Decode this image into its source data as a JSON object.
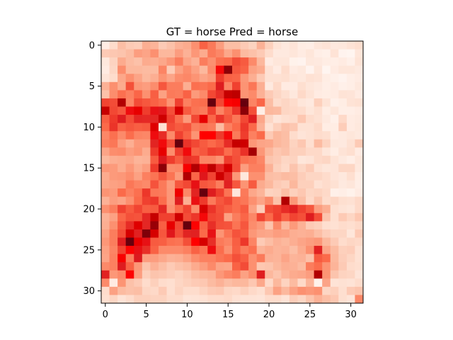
{
  "chart_data": {
    "type": "heatmap",
    "title": "GT = horse Pred = horse",
    "xlabel": "",
    "ylabel": "",
    "colormap": "Reds",
    "rows": 32,
    "cols": 32,
    "xlim": [
      -0.5,
      31.5
    ],
    "ylim": [
      31.5,
      -0.5
    ],
    "x_ticks": [
      0,
      5,
      10,
      15,
      20,
      25,
      30
    ],
    "y_ticks": [
      0,
      5,
      10,
      15,
      20,
      25,
      30
    ],
    "x_tick_labels": [
      "0",
      "5",
      "10",
      "15",
      "20",
      "25",
      "30"
    ],
    "y_tick_labels": [
      "0",
      "5",
      "10",
      "15",
      "20",
      "25",
      "30"
    ],
    "grid": false,
    "values": [
      [
        0.05,
        0.14,
        0.24,
        0.2,
        0.19,
        0.29,
        0.27,
        0.2,
        0.23,
        0.28,
        0.3,
        0.38,
        0.52,
        0.45,
        0.34,
        0.24,
        0.24,
        0.2,
        0.17,
        0.28,
        0.18,
        0.11,
        0.07,
        0.1,
        0.05,
        0.04,
        0.09,
        0.11,
        0.07,
        0.08,
        0.11,
        0.13
      ],
      [
        0.2,
        0.21,
        0.22,
        0.25,
        0.34,
        0.32,
        0.38,
        0.26,
        0.26,
        0.34,
        0.28,
        0.36,
        0.3,
        0.45,
        0.41,
        0.31,
        0.38,
        0.25,
        0.23,
        0.2,
        0.14,
        0.07,
        0.07,
        0.09,
        0.06,
        0.09,
        0.04,
        0.03,
        0.11,
        0.01,
        0.0,
        0.09
      ],
      [
        0.08,
        0.17,
        0.3,
        0.25,
        0.23,
        0.3,
        0.29,
        0.31,
        0.36,
        0.44,
        0.32,
        0.28,
        0.44,
        0.38,
        0.48,
        0.5,
        0.58,
        0.54,
        0.4,
        0.26,
        0.06,
        0.09,
        0.09,
        0.02,
        0.01,
        0.08,
        0.07,
        0.05,
        0.04,
        0.06,
        0.03,
        0.11
      ],
      [
        0.06,
        0.16,
        0.39,
        0.26,
        0.26,
        0.25,
        0.25,
        0.42,
        0.2,
        0.33,
        0.39,
        0.33,
        0.26,
        0.4,
        0.82,
        0.97,
        0.55,
        0.52,
        0.33,
        0.3,
        0.12,
        0.06,
        0.14,
        0.06,
        0.08,
        0.01,
        0.09,
        0.0,
        0.06,
        0.09,
        0.09,
        0.07
      ],
      [
        0.1,
        0.14,
        0.31,
        0.38,
        0.32,
        0.26,
        0.29,
        0.37,
        0.32,
        0.39,
        0.41,
        0.37,
        0.32,
        0.35,
        0.62,
        0.52,
        0.51,
        0.36,
        0.29,
        0.2,
        0.12,
        0.12,
        0.13,
        0.09,
        0.08,
        0.12,
        0.11,
        0.05,
        0.03,
        0.01,
        0.04,
        0.06
      ],
      [
        0.28,
        0.38,
        0.3,
        0.57,
        0.36,
        0.34,
        0.39,
        0.55,
        0.44,
        0.44,
        0.29,
        0.48,
        0.47,
        0.5,
        0.74,
        0.42,
        0.61,
        0.37,
        0.46,
        0.29,
        0.07,
        0.15,
        0.06,
        0.06,
        0.13,
        0.09,
        0.07,
        0.04,
        0.06,
        0.03,
        0.04,
        0.08
      ],
      [
        0.23,
        0.39,
        0.48,
        0.43,
        0.51,
        0.38,
        0.53,
        0.33,
        0.45,
        0.44,
        0.52,
        0.35,
        0.4,
        0.59,
        0.67,
        0.92,
        0.93,
        0.37,
        0.4,
        0.28,
        0.2,
        0.16,
        0.13,
        0.08,
        0.15,
        0.11,
        0.06,
        0.05,
        0.06,
        0.11,
        0.1,
        0.06
      ],
      [
        0.6,
        0.58,
        0.94,
        0.42,
        0.58,
        0.55,
        0.52,
        0.49,
        0.37,
        0.61,
        0.43,
        0.48,
        0.49,
        1.0,
        0.59,
        0.84,
        0.86,
        1.0,
        0.42,
        0.51,
        0.24,
        0.14,
        0.16,
        0.14,
        0.09,
        0.07,
        0.18,
        0.11,
        0.03,
        0.05,
        0.11,
        0.12
      ],
      [
        0.92,
        0.59,
        0.55,
        0.8,
        0.88,
        0.62,
        0.78,
        0.76,
        0.57,
        0.9,
        0.54,
        0.47,
        0.45,
        0.61,
        0.42,
        0.52,
        0.65,
        0.97,
        0.57,
        0.04,
        0.26,
        0.25,
        0.16,
        0.15,
        0.14,
        0.09,
        0.13,
        0.05,
        0.09,
        0.04,
        0.04,
        0.06
      ],
      [
        0.53,
        0.63,
        0.74,
        0.58,
        0.7,
        0.69,
        0.7,
        0.91,
        0.61,
        0.49,
        0.35,
        0.59,
        0.88,
        0.51,
        0.65,
        0.55,
        0.46,
        0.59,
        0.73,
        0.31,
        0.16,
        0.1,
        0.13,
        0.14,
        0.21,
        0.14,
        0.12,
        0.07,
        0.03,
        0.15,
        0.06,
        0.07
      ],
      [
        0.5,
        0.65,
        0.52,
        0.55,
        0.53,
        0.54,
        0.89,
        0.12,
        0.58,
        0.54,
        0.56,
        0.44,
        0.47,
        0.45,
        0.25,
        0.43,
        0.5,
        0.64,
        0.5,
        0.28,
        0.12,
        0.18,
        0.23,
        0.21,
        0.12,
        0.12,
        0.15,
        0.05,
        0.05,
        0.19,
        0.06,
        0.08
      ],
      [
        0.41,
        0.48,
        0.4,
        0.49,
        0.42,
        0.41,
        0.8,
        0.68,
        0.4,
        0.61,
        0.52,
        0.37,
        0.85,
        0.85,
        0.63,
        0.82,
        0.45,
        0.62,
        0.43,
        0.5,
        0.2,
        0.26,
        0.24,
        0.14,
        0.1,
        0.12,
        0.14,
        0.13,
        0.06,
        0.07,
        0.09,
        0.07
      ],
      [
        0.43,
        0.46,
        0.34,
        0.29,
        0.36,
        0.36,
        0.71,
        0.81,
        0.58,
        1.0,
        0.65,
        0.59,
        0.54,
        0.5,
        0.54,
        0.68,
        0.92,
        0.91,
        0.36,
        0.32,
        0.31,
        0.26,
        0.24,
        0.17,
        0.21,
        0.13,
        0.25,
        0.17,
        0.08,
        0.07,
        0.12,
        0.2
      ],
      [
        0.32,
        0.39,
        0.4,
        0.34,
        0.37,
        0.3,
        0.63,
        0.88,
        0.39,
        0.62,
        0.81,
        0.52,
        0.55,
        0.62,
        0.6,
        0.49,
        0.56,
        0.66,
        0.95,
        0.36,
        0.26,
        0.21,
        0.23,
        0.18,
        0.18,
        0.15,
        0.15,
        0.09,
        0.05,
        0.11,
        0.13,
        0.06
      ],
      [
        0.26,
        0.29,
        0.3,
        0.31,
        0.27,
        0.28,
        0.54,
        0.75,
        0.62,
        0.54,
        0.66,
        0.63,
        0.42,
        0.42,
        0.37,
        0.62,
        0.57,
        0.48,
        0.46,
        0.41,
        0.22,
        0.2,
        0.16,
        0.17,
        0.09,
        0.11,
        0.15,
        0.16,
        0.11,
        0.07,
        0.04,
        0.09
      ],
      [
        0.36,
        0.35,
        0.3,
        0.36,
        0.3,
        0.34,
        0.63,
        0.97,
        0.4,
        0.41,
        0.86,
        0.94,
        0.8,
        0.93,
        0.69,
        0.9,
        0.58,
        0.34,
        0.43,
        0.43,
        0.28,
        0.18,
        0.15,
        0.22,
        0.16,
        0.2,
        0.12,
        0.09,
        0.1,
        0.16,
        0.16,
        0.08
      ],
      [
        0.3,
        0.35,
        0.36,
        0.39,
        0.33,
        0.43,
        0.47,
        0.55,
        0.47,
        0.35,
        0.94,
        0.51,
        0.76,
        0.6,
        0.91,
        0.7,
        0.36,
        0.08,
        0.38,
        0.38,
        0.24,
        0.23,
        0.25,
        0.24,
        0.19,
        0.16,
        0.16,
        0.14,
        0.1,
        0.08,
        0.13,
        0.05
      ],
      [
        0.31,
        0.33,
        0.34,
        0.46,
        0.42,
        0.4,
        0.56,
        0.45,
        0.35,
        0.55,
        0.59,
        0.78,
        0.55,
        0.53,
        0.44,
        0.72,
        0.55,
        0.37,
        0.54,
        0.3,
        0.26,
        0.2,
        0.18,
        0.26,
        0.18,
        0.18,
        0.12,
        0.14,
        0.12,
        0.07,
        0.09,
        0.04
      ],
      [
        0.37,
        0.35,
        0.5,
        0.43,
        0.48,
        0.64,
        0.46,
        0.45,
        0.36,
        0.87,
        0.41,
        0.71,
        1.0,
        0.74,
        0.62,
        0.47,
        0.09,
        0.45,
        0.31,
        0.27,
        0.17,
        0.18,
        0.24,
        0.18,
        0.21,
        0.16,
        0.17,
        0.15,
        0.03,
        0.04,
        0.02,
        0.06
      ],
      [
        0.28,
        0.34,
        0.32,
        0.38,
        0.5,
        0.61,
        0.64,
        0.49,
        0.36,
        0.73,
        0.29,
        0.79,
        0.63,
        0.45,
        0.55,
        0.59,
        0.49,
        0.46,
        0.38,
        0.32,
        0.4,
        0.23,
        0.94,
        0.36,
        0.24,
        0.15,
        0.22,
        0.14,
        0.16,
        0.13,
        0.12,
        0.15
      ],
      [
        0.38,
        0.44,
        0.61,
        0.54,
        0.6,
        0.53,
        0.54,
        0.69,
        0.38,
        0.5,
        0.6,
        0.4,
        0.9,
        0.65,
        0.57,
        0.53,
        0.49,
        0.54,
        0.33,
        0.19,
        0.58,
        0.61,
        0.68,
        0.73,
        0.61,
        0.55,
        0.34,
        0.29,
        0.13,
        0.11,
        0.09,
        0.15
      ],
      [
        0.28,
        0.33,
        0.51,
        0.57,
        0.56,
        0.7,
        0.92,
        0.61,
        0.61,
        0.91,
        0.58,
        0.64,
        0.82,
        0.6,
        0.58,
        0.33,
        0.44,
        0.51,
        0.41,
        0.6,
        0.5,
        0.62,
        0.52,
        0.6,
        0.57,
        0.74,
        0.58,
        0.22,
        0.13,
        0.2,
        0.16,
        0.21
      ],
      [
        0.29,
        0.38,
        0.55,
        0.68,
        0.89,
        0.7,
        0.96,
        0.53,
        0.88,
        0.59,
        1.0,
        0.84,
        0.52,
        0.67,
        0.57,
        0.56,
        0.47,
        0.55,
        0.39,
        0.35,
        0.22,
        0.4,
        0.26,
        0.35,
        0.28,
        0.2,
        0.18,
        0.13,
        0.12,
        0.14,
        0.13,
        0.15
      ],
      [
        0.33,
        0.44,
        0.58,
        0.9,
        0.72,
        0.98,
        0.9,
        0.55,
        0.76,
        0.58,
        0.71,
        0.72,
        0.5,
        0.78,
        0.37,
        0.47,
        0.56,
        0.53,
        0.36,
        0.32,
        0.31,
        0.34,
        0.33,
        0.29,
        0.28,
        0.29,
        0.24,
        0.19,
        0.16,
        0.16,
        0.09,
        0.2
      ],
      [
        0.36,
        0.44,
        0.73,
        1.0,
        0.88,
        0.78,
        0.54,
        0.53,
        0.48,
        0.47,
        0.57,
        0.85,
        0.9,
        0.67,
        0.45,
        0.42,
        0.53,
        0.64,
        0.42,
        0.2,
        0.24,
        0.28,
        0.26,
        0.29,
        0.32,
        0.34,
        0.36,
        0.26,
        0.2,
        0.14,
        0.16,
        0.15
      ],
      [
        0.33,
        0.42,
        0.6,
        0.84,
        0.78,
        0.67,
        0.52,
        0.4,
        0.4,
        0.4,
        0.43,
        0.52,
        0.47,
        0.8,
        0.49,
        0.38,
        0.52,
        0.44,
        0.48,
        0.27,
        0.3,
        0.27,
        0.28,
        0.24,
        0.3,
        0.38,
        0.72,
        0.32,
        0.25,
        0.18,
        0.19,
        0.12
      ],
      [
        0.32,
        0.43,
        0.86,
        0.44,
        0.75,
        0.34,
        0.34,
        0.31,
        0.28,
        0.29,
        0.33,
        0.39,
        0.43,
        0.43,
        0.47,
        0.5,
        0.57,
        0.53,
        0.38,
        0.45,
        0.28,
        0.27,
        0.32,
        0.27,
        0.28,
        0.23,
        0.54,
        0.5,
        0.26,
        0.19,
        0.16,
        0.12
      ],
      [
        0.4,
        0.43,
        0.74,
        0.52,
        0.36,
        0.22,
        0.28,
        0.24,
        0.2,
        0.23,
        0.25,
        0.3,
        0.34,
        0.4,
        0.32,
        0.31,
        0.52,
        0.58,
        0.38,
        0.21,
        0.22,
        0.26,
        0.29,
        0.28,
        0.25,
        0.44,
        0.49,
        0.37,
        0.27,
        0.2,
        0.14,
        0.13
      ],
      [
        0.72,
        0.36,
        0.4,
        0.84,
        0.34,
        0.18,
        0.22,
        0.21,
        0.19,
        0.17,
        0.2,
        0.24,
        0.26,
        0.27,
        0.36,
        0.41,
        0.44,
        0.33,
        0.39,
        0.73,
        0.26,
        0.22,
        0.27,
        0.3,
        0.31,
        0.34,
        0.94,
        0.37,
        0.22,
        0.17,
        0.16,
        0.1
      ],
      [
        0.4,
        0.06,
        0.37,
        0.23,
        0.2,
        0.14,
        0.18,
        0.14,
        0.13,
        0.16,
        0.18,
        0.2,
        0.21,
        0.25,
        0.28,
        0.24,
        0.26,
        0.26,
        0.21,
        0.31,
        0.15,
        0.26,
        0.17,
        0.25,
        0.15,
        0.27,
        0.02,
        0.32,
        0.11,
        0.12,
        0.11,
        0.14
      ],
      [
        0.14,
        0.33,
        0.25,
        0.23,
        0.24,
        0.16,
        0.15,
        0.2,
        0.13,
        0.17,
        0.14,
        0.14,
        0.17,
        0.2,
        0.21,
        0.16,
        0.15,
        0.18,
        0.15,
        0.13,
        0.21,
        0.33,
        0.26,
        0.33,
        0.38,
        0.36,
        0.38,
        0.16,
        0.18,
        0.13,
        0.2,
        0.22
      ],
      [
        0.13,
        0.16,
        0.11,
        0.14,
        0.18,
        0.18,
        0.17,
        0.17,
        0.14,
        0.14,
        0.1,
        0.11,
        0.12,
        0.14,
        0.14,
        0.15,
        0.12,
        0.11,
        0.11,
        0.1,
        0.14,
        0.14,
        0.11,
        0.19,
        0.16,
        0.22,
        0.28,
        0.24,
        0.21,
        0.13,
        0.1,
        0.41
      ]
    ]
  }
}
